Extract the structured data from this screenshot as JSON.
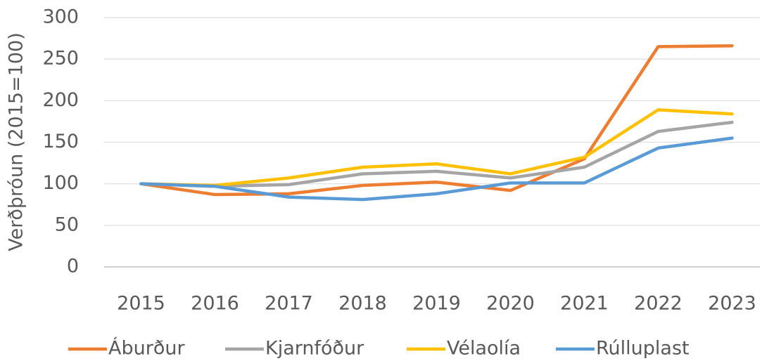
{
  "chart_data": {
    "type": "line",
    "y_label": "Verðþróun (2015=100)",
    "categories": [
      "2015",
      "2016",
      "2017",
      "2018",
      "2019",
      "2020",
      "2021",
      "2022",
      "2023"
    ],
    "series": [
      {
        "name": "Áburður",
        "color": "#ed7d31",
        "values": [
          100,
          87,
          88,
          98,
          102,
          92,
          130,
          265,
          266
        ]
      },
      {
        "name": "Kjarnfóður",
        "color": "#a5a5a5",
        "values": [
          100,
          97,
          99,
          112,
          115,
          107,
          120,
          163,
          174
        ]
      },
      {
        "name": "Vélaolía",
        "color": "#ffc000",
        "values": [
          100,
          98,
          107,
          120,
          124,
          112,
          132,
          189,
          184
        ]
      },
      {
        "name": "Rúlluplast",
        "color": "#5b9bd5",
        "values": [
          100,
          97,
          84,
          81,
          88,
          101,
          101,
          143,
          155
        ]
      }
    ],
    "ylim": [
      0,
      300
    ],
    "yticks": [
      0,
      50,
      100,
      150,
      200,
      250,
      300
    ],
    "grid": true,
    "legend": "bottom"
  }
}
